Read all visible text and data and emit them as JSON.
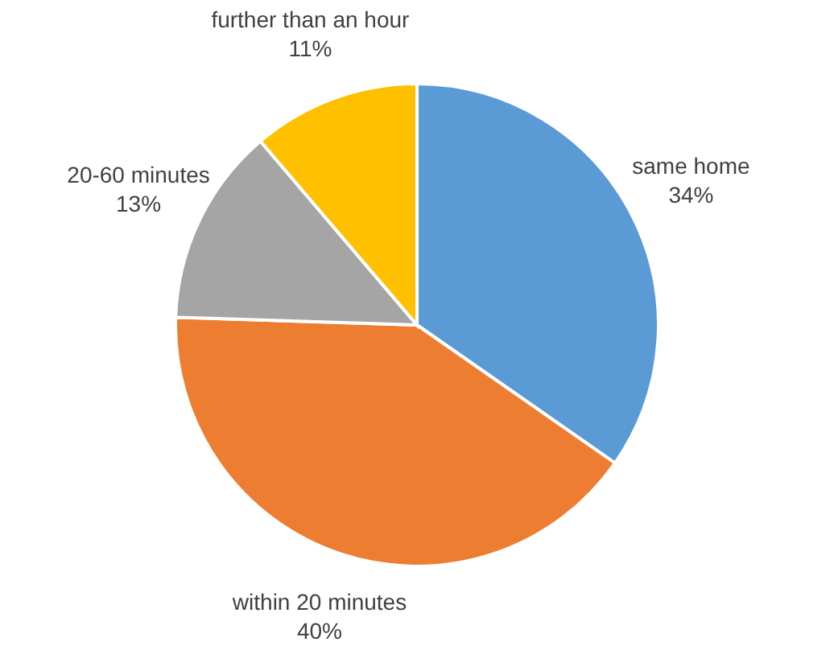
{
  "chart_data": {
    "type": "pie",
    "categories": [
      "same home",
      "within 20 minutes",
      "20-60 minutes",
      "further than an hour"
    ],
    "values": [
      34,
      40,
      13,
      11
    ],
    "value_labels": [
      "34%",
      "40%",
      "13%",
      "11%"
    ],
    "colors": [
      "#5b9bd5",
      "#ed7d31",
      "#a5a5a5",
      "#ffc000"
    ]
  }
}
